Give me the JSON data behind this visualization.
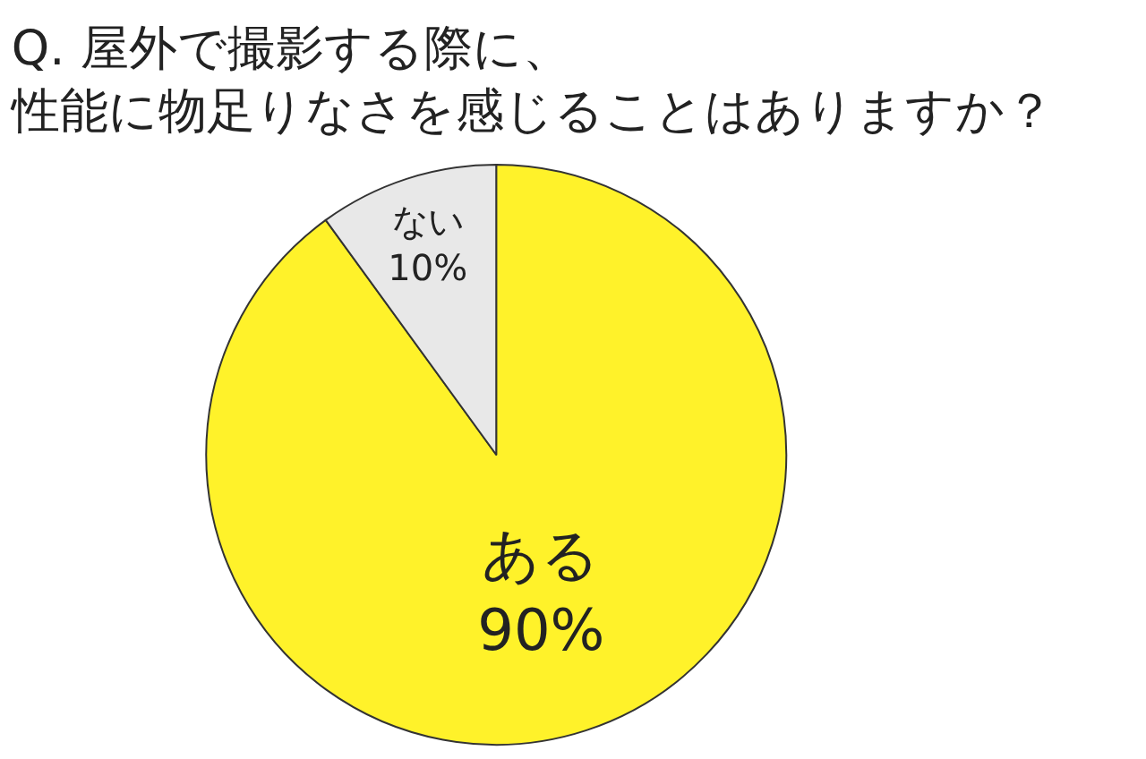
{
  "chart_data": {
    "type": "pie",
    "title": "Q. 屋外で撮影する際に、性能に物足りなさを感じることはありますか？",
    "categories": [
      "ある",
      "ない"
    ],
    "values": [
      90,
      10
    ],
    "value_labels": [
      "90%",
      "10%"
    ],
    "colors": [
      "#fff22a",
      "#e8e8e8"
    ],
    "legend": false
  }
}
